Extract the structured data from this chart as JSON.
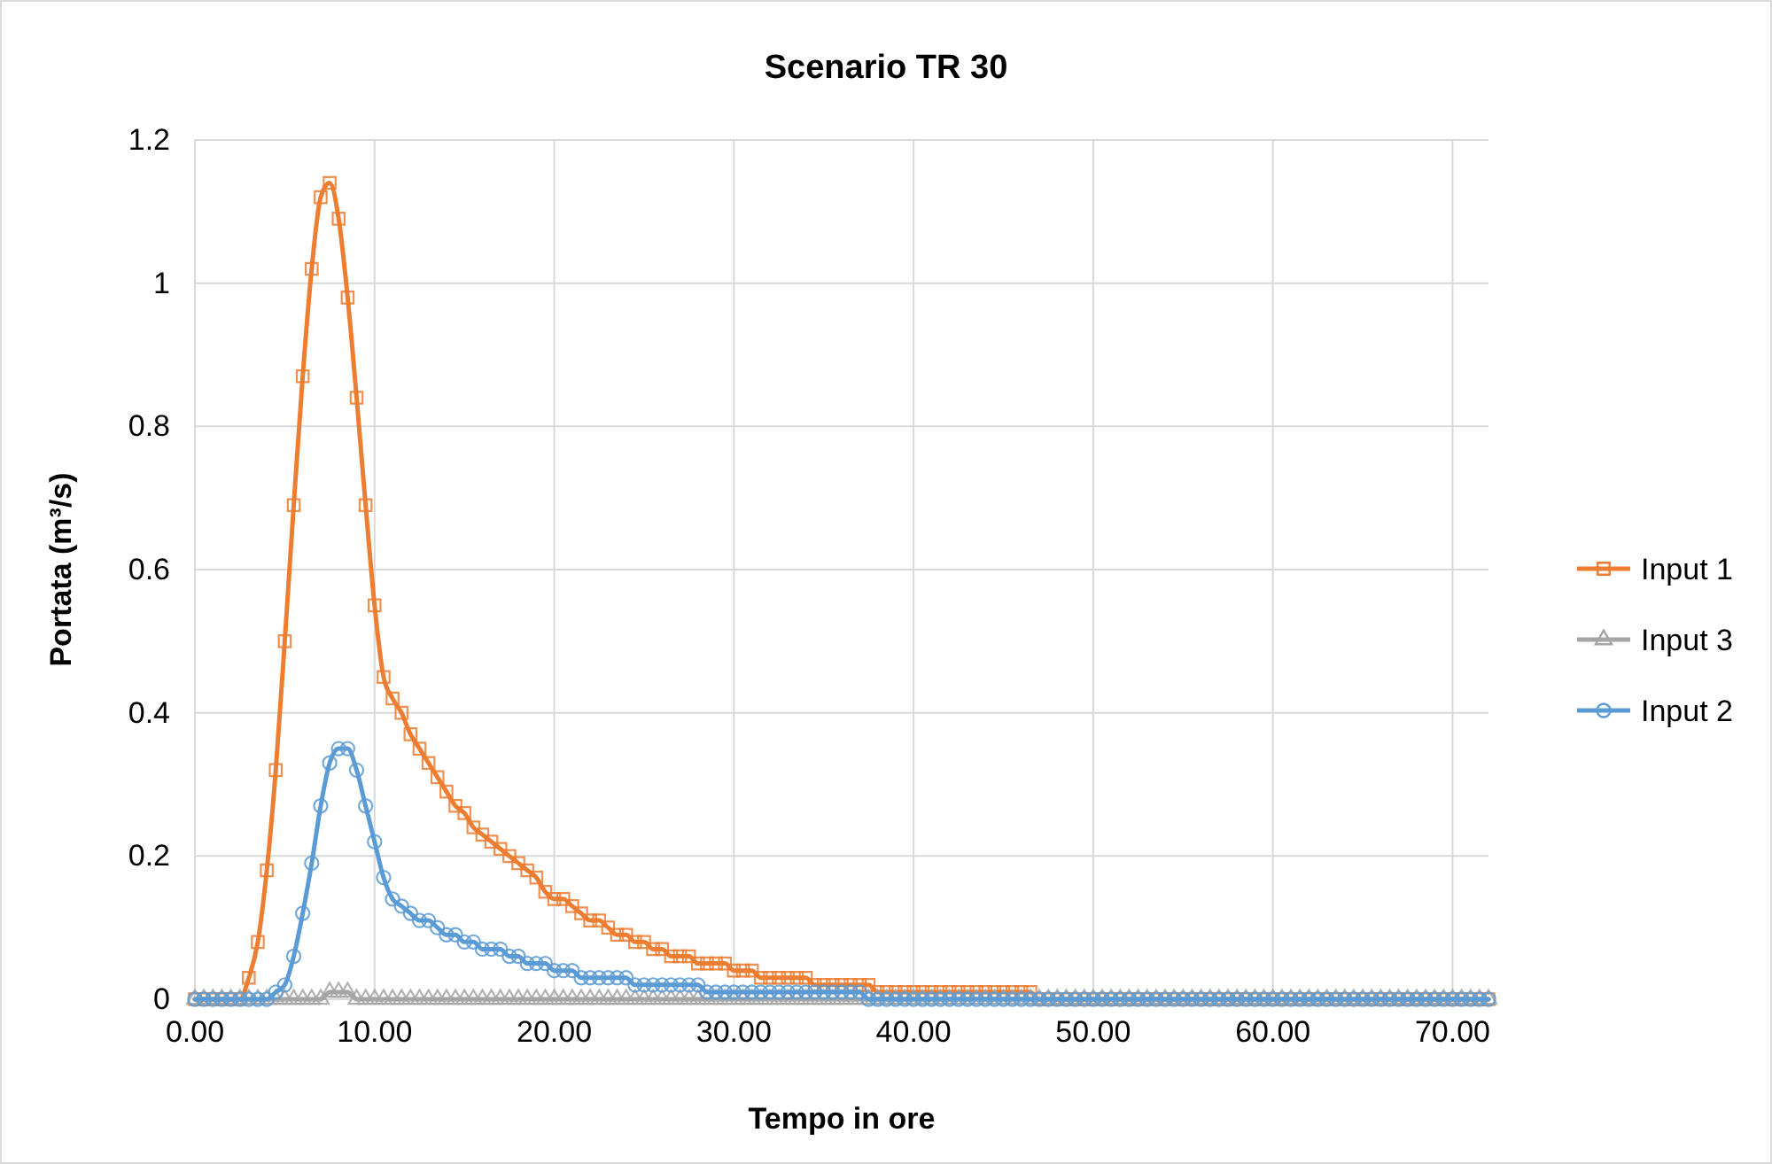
{
  "chart_data": {
    "type": "line",
    "title": "Scenario TR 30",
    "xlabel": "Tempo in ore",
    "ylabel": "Portata (m³/s)",
    "x": [
      0,
      0.5,
      1,
      1.5,
      2,
      2.5,
      3,
      3.5,
      4,
      4.5,
      5,
      5.5,
      6,
      6.5,
      7,
      7.5,
      8,
      8.5,
      9,
      9.5,
      10,
      10.5,
      11,
      11.5,
      12,
      12.5,
      13,
      13.5,
      14,
      14.5,
      15,
      15.5,
      16,
      16.5,
      17,
      17.5,
      18,
      18.5,
      19,
      19.5,
      20,
      20.5,
      21,
      21.5,
      22,
      22.5,
      23,
      23.5,
      24,
      24.5,
      25,
      25.5,
      26,
      26.5,
      27,
      27.5,
      28,
      28.5,
      29,
      29.5,
      30,
      30.5,
      31,
      31.5,
      32,
      32.5,
      33,
      33.5,
      34,
      34.5,
      35,
      35.5,
      36,
      36.5,
      37,
      37.5,
      38,
      38.5,
      39,
      39.5,
      40,
      40.5,
      41,
      41.5,
      42,
      42.5,
      43,
      43.5,
      44,
      44.5,
      45,
      45.5,
      46,
      46.5,
      47,
      47.5,
      48,
      48.5,
      49,
      49.5,
      50,
      50.5,
      51,
      51.5,
      52,
      52.5,
      53,
      53.5,
      54,
      54.5,
      55,
      55.5,
      56,
      56.5,
      57,
      57.5,
      58,
      58.5,
      59,
      59.5,
      60,
      60.5,
      61,
      61.5,
      62,
      62.5,
      63,
      63.5,
      64,
      64.5,
      65,
      65.5,
      66,
      66.5,
      67,
      67.5,
      68,
      68.5,
      69,
      69.5,
      70,
      70.5,
      71,
      71.5,
      72
    ],
    "series": [
      {
        "name": "Input 1",
        "color": "#ed7d31",
        "marker": "square",
        "values": [
          0,
          0,
          0,
          0,
          0,
          0,
          0.03,
          0.08,
          0.18,
          0.32,
          0.5,
          0.69,
          0.87,
          1.02,
          1.12,
          1.14,
          1.09,
          0.98,
          0.84,
          0.69,
          0.55,
          0.45,
          0.42,
          0.4,
          0.37,
          0.35,
          0.33,
          0.31,
          0.29,
          0.27,
          0.26,
          0.24,
          0.23,
          0.22,
          0.21,
          0.2,
          0.19,
          0.18,
          0.17,
          0.15,
          0.14,
          0.14,
          0.13,
          0.12,
          0.11,
          0.11,
          0.1,
          0.09,
          0.09,
          0.08,
          0.08,
          0.07,
          0.07,
          0.06,
          0.06,
          0.06,
          0.05,
          0.05,
          0.05,
          0.05,
          0.04,
          0.04,
          0.04,
          0.03,
          0.03,
          0.03,
          0.03,
          0.03,
          0.03,
          0.02,
          0.02,
          0.02,
          0.02,
          0.02,
          0.02,
          0.02,
          0.01,
          0.01,
          0.01,
          0.01,
          0.01,
          0.01,
          0.01,
          0.01,
          0.01,
          0.01,
          0.01,
          0.01,
          0.01,
          0.01,
          0.01,
          0.01,
          0.01,
          0.01,
          0,
          0,
          0,
          0,
          0,
          0,
          0,
          0,
          0,
          0,
          0,
          0,
          0,
          0,
          0,
          0,
          0,
          0,
          0,
          0,
          0,
          0,
          0,
          0,
          0,
          0,
          0,
          0,
          0,
          0,
          0,
          0,
          0,
          0,
          0,
          0,
          0,
          0,
          0,
          0,
          0,
          0,
          0,
          0,
          0,
          0,
          0,
          0,
          0,
          0,
          0
        ]
      },
      {
        "name": "Input 3",
        "color": "#a5a5a5",
        "marker": "triangle",
        "values": [
          0,
          0,
          0,
          0,
          0,
          0,
          0,
          0,
          0,
          0,
          0,
          0,
          0,
          0,
          0,
          0.01,
          0.01,
          0.01,
          0,
          0,
          0,
          0,
          0,
          0,
          0,
          0,
          0,
          0,
          0,
          0,
          0,
          0,
          0,
          0,
          0,
          0,
          0,
          0,
          0,
          0,
          0,
          0,
          0,
          0,
          0,
          0,
          0,
          0,
          0,
          0,
          0,
          0,
          0,
          0,
          0,
          0,
          0,
          0,
          0,
          0,
          0,
          0,
          0,
          0,
          0,
          0,
          0,
          0,
          0,
          0,
          0,
          0,
          0,
          0,
          0,
          0,
          0,
          0,
          0,
          0,
          0,
          0,
          0,
          0,
          0,
          0,
          0,
          0,
          0,
          0,
          0,
          0,
          0,
          0,
          0,
          0,
          0,
          0,
          0,
          0,
          0,
          0,
          0,
          0,
          0,
          0,
          0,
          0,
          0,
          0,
          0,
          0,
          0,
          0,
          0,
          0,
          0,
          0,
          0,
          0,
          0,
          0,
          0,
          0,
          0,
          0,
          0,
          0,
          0,
          0,
          0,
          0,
          0,
          0,
          0,
          0,
          0,
          0,
          0,
          0,
          0,
          0,
          0,
          0,
          0
        ]
      },
      {
        "name": "Input 2",
        "color": "#5b9bd5",
        "marker": "circle",
        "values": [
          0,
          0,
          0,
          0,
          0,
          0,
          0,
          0,
          0,
          0.01,
          0.02,
          0.06,
          0.12,
          0.19,
          0.27,
          0.33,
          0.35,
          0.35,
          0.32,
          0.27,
          0.22,
          0.17,
          0.14,
          0.13,
          0.12,
          0.11,
          0.11,
          0.1,
          0.09,
          0.09,
          0.08,
          0.08,
          0.07,
          0.07,
          0.07,
          0.06,
          0.06,
          0.05,
          0.05,
          0.05,
          0.04,
          0.04,
          0.04,
          0.03,
          0.03,
          0.03,
          0.03,
          0.03,
          0.03,
          0.02,
          0.02,
          0.02,
          0.02,
          0.02,
          0.02,
          0.02,
          0.02,
          0.01,
          0.01,
          0.01,
          0.01,
          0.01,
          0.01,
          0.01,
          0.01,
          0.01,
          0.01,
          0.01,
          0.01,
          0.01,
          0.01,
          0.01,
          0.01,
          0.01,
          0.01,
          0,
          0,
          0,
          0,
          0,
          0,
          0,
          0,
          0,
          0,
          0,
          0,
          0,
          0,
          0,
          0,
          0,
          0,
          0,
          0,
          0,
          0,
          0,
          0,
          0,
          0,
          0,
          0,
          0,
          0,
          0,
          0,
          0,
          0,
          0,
          0,
          0,
          0,
          0,
          0,
          0,
          0,
          0,
          0,
          0,
          0,
          0,
          0,
          0,
          0,
          0,
          0,
          0,
          0,
          0,
          0,
          0,
          0,
          0,
          0,
          0,
          0,
          0,
          0,
          0,
          0,
          0,
          0,
          0,
          0
        ]
      }
    ],
    "xlim": [
      0,
      72
    ],
    "xticks": [
      {
        "value": 0,
        "label": "0.00"
      },
      {
        "value": 10,
        "label": "10.00"
      },
      {
        "value": 20,
        "label": "20.00"
      },
      {
        "value": 30,
        "label": "30.00"
      },
      {
        "value": 40,
        "label": "40.00"
      },
      {
        "value": 50,
        "label": "50.00"
      },
      {
        "value": 60,
        "label": "60.00"
      },
      {
        "value": 70,
        "label": "70.00"
      }
    ],
    "ylim": [
      0,
      1.2
    ],
    "yticks": [
      0,
      0.2,
      0.4,
      0.6,
      0.8,
      1,
      1.2
    ],
    "grid": true,
    "legend": "right",
    "line_style": "solid"
  }
}
